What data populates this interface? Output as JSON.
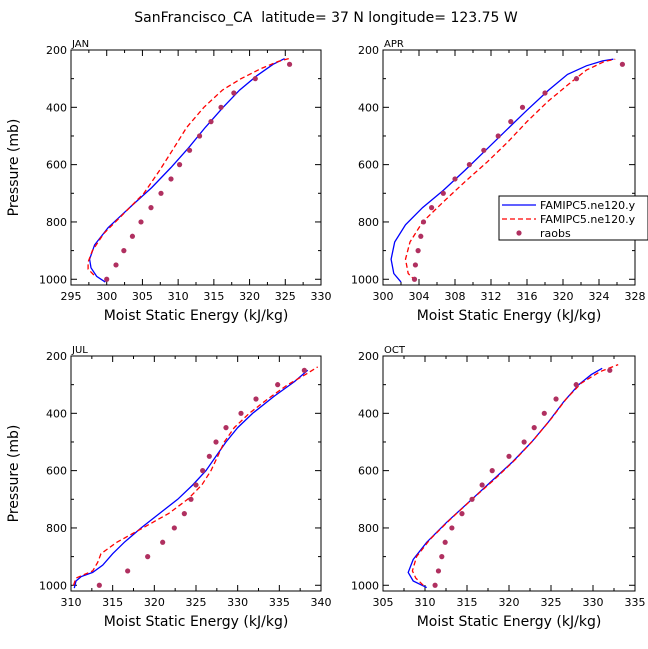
{
  "figure_title": "SanFrancisco_CA  latitude= 37 N longitude= 123.75 W",
  "legend": {
    "entries": [
      {
        "label": "FAMIPC5.ne120.y",
        "color": "#0000ff",
        "style": "solid"
      },
      {
        "label": "FAMIPC5.ne120.y",
        "color": "#ff0000",
        "style": "dashed"
      },
      {
        "label": "raobs",
        "color": "#b03060",
        "style": "dots"
      }
    ]
  },
  "chart_data": [
    {
      "type": "line",
      "title": "JAN",
      "xlabel": "Moist Static Energy (kJ/kg)",
      "ylabel": "Pressure (mb)",
      "xlim": [
        295,
        330
      ],
      "ylim": [
        1020,
        200
      ],
      "xticks": [
        295,
        300,
        305,
        310,
        315,
        320,
        325,
        330
      ],
      "yticks": [
        200,
        400,
        600,
        800,
        1000
      ],
      "series": [
        {
          "name": "FAMIPC5.ne120.y",
          "color": "#0000ff",
          "style": "solid",
          "points": [
            [
              299.8,
              1010
            ],
            [
              298.6,
              990
            ],
            [
              297.8,
              960
            ],
            [
              297.6,
              930
            ],
            [
              298.3,
              880
            ],
            [
              300.2,
              820
            ],
            [
              303.2,
              750
            ],
            [
              306.3,
              680
            ],
            [
              309.0,
              610
            ],
            [
              311.5,
              540
            ],
            [
              313.8,
              470
            ],
            [
              316.3,
              400
            ],
            [
              318.6,
              340
            ],
            [
              321.0,
              290
            ],
            [
              323.3,
              250
            ],
            [
              324.9,
              230
            ]
          ]
        },
        {
          "name": "FAMIPC5.ne120.y",
          "color": "#ff0000",
          "style": "dashed",
          "points": [
            [
              298.2,
              985
            ],
            [
              297.4,
              965
            ],
            [
              297.4,
              940
            ],
            [
              298.0,
              900
            ],
            [
              299.6,
              840
            ],
            [
              302.4,
              770
            ],
            [
              305.2,
              700
            ],
            [
              307.4,
              620
            ],
            [
              309.2,
              550
            ],
            [
              311.2,
              470
            ],
            [
              313.6,
              400
            ],
            [
              316.2,
              340
            ],
            [
              318.8,
              300
            ],
            [
              321.6,
              265
            ],
            [
              324.0,
              240
            ],
            [
              325.8,
              228
            ]
          ]
        },
        {
          "name": "raobs",
          "color": "#b03060",
          "style": "dots",
          "points": [
            [
              300.0,
              1000
            ],
            [
              301.3,
              950
            ],
            [
              302.4,
              900
            ],
            [
              303.6,
              850
            ],
            [
              304.8,
              800
            ],
            [
              306.2,
              750
            ],
            [
              307.6,
              700
            ],
            [
              309.0,
              650
            ],
            [
              310.2,
              600
            ],
            [
              311.6,
              550
            ],
            [
              313.0,
              500
            ],
            [
              314.6,
              450
            ],
            [
              316.0,
              400
            ],
            [
              317.8,
              350
            ],
            [
              320.8,
              300
            ],
            [
              325.6,
              250
            ]
          ]
        }
      ]
    },
    {
      "type": "line",
      "title": "APR",
      "xlabel": "Moist Static Energy (kJ/kg)",
      "ylabel": "",
      "xlim": [
        300,
        328
      ],
      "ylim": [
        1020,
        200
      ],
      "xticks": [
        300,
        304,
        308,
        312,
        316,
        320,
        324,
        328
      ],
      "yticks": [
        200,
        400,
        600,
        800,
        1000
      ],
      "series": [
        {
          "name": "FAMIPC5.ne120.y",
          "color": "#0000ff",
          "style": "solid",
          "points": [
            [
              302.0,
              1010
            ],
            [
              301.2,
              980
            ],
            [
              300.9,
              930
            ],
            [
              301.3,
              870
            ],
            [
              302.5,
              810
            ],
            [
              304.4,
              750
            ],
            [
              306.7,
              690
            ],
            [
              309.1,
              620
            ],
            [
              311.4,
              550
            ],
            [
              313.7,
              480
            ],
            [
              316.0,
              410
            ],
            [
              318.4,
              340
            ],
            [
              320.5,
              285
            ],
            [
              322.6,
              255
            ],
            [
              324.4,
              238
            ],
            [
              325.6,
              232
            ]
          ]
        },
        {
          "name": "FAMIPC5.ne120.y",
          "color": "#ff0000",
          "style": "dashed",
          "points": [
            [
              303.6,
              1005
            ],
            [
              302.8,
              980
            ],
            [
              302.5,
              930
            ],
            [
              303.0,
              870
            ],
            [
              304.4,
              800
            ],
            [
              306.7,
              730
            ],
            [
              309.1,
              660
            ],
            [
              311.6,
              590
            ],
            [
              313.9,
              520
            ],
            [
              316.0,
              450
            ],
            [
              318.3,
              380
            ],
            [
              320.6,
              320
            ],
            [
              322.6,
              270
            ],
            [
              324.6,
              240
            ],
            [
              325.8,
              232
            ]
          ]
        },
        {
          "name": "raobs",
          "color": "#b03060",
          "style": "dots",
          "points": [
            [
              303.5,
              1000
            ],
            [
              303.6,
              950
            ],
            [
              303.9,
              900
            ],
            [
              304.2,
              850
            ],
            [
              304.5,
              800
            ],
            [
              305.4,
              750
            ],
            [
              306.7,
              700
            ],
            [
              308.0,
              650
            ],
            [
              309.6,
              600
            ],
            [
              311.2,
              550
            ],
            [
              312.8,
              500
            ],
            [
              314.2,
              450
            ],
            [
              315.5,
              400
            ],
            [
              318.0,
              350
            ],
            [
              321.5,
              300
            ],
            [
              326.6,
              250
            ]
          ]
        }
      ]
    },
    {
      "type": "line",
      "title": "JUL",
      "xlabel": "Moist Static Energy (kJ/kg)",
      "ylabel": "Pressure (mb)",
      "xlim": [
        310,
        340
      ],
      "ylim": [
        1020,
        200
      ],
      "xticks": [
        310,
        315,
        320,
        325,
        330,
        335,
        340
      ],
      "yticks": [
        200,
        400,
        600,
        800,
        1000
      ],
      "series": [
        {
          "name": "FAMIPC5.ne120.y",
          "color": "#0000ff",
          "style": "solid",
          "points": [
            [
              310.4,
              1010
            ],
            [
              310.6,
              985
            ],
            [
              311.2,
              970
            ],
            [
              312.6,
              955
            ],
            [
              313.8,
              930
            ],
            [
              315.0,
              890
            ],
            [
              316.4,
              850
            ],
            [
              318.4,
              800
            ],
            [
              320.6,
              750
            ],
            [
              322.8,
              700
            ],
            [
              324.6,
              650
            ],
            [
              326.2,
              600
            ],
            [
              327.4,
              550
            ],
            [
              328.6,
              500
            ],
            [
              330.0,
              450
            ],
            [
              331.8,
              400
            ],
            [
              334.4,
              340
            ],
            [
              336.8,
              290
            ],
            [
              338.4,
              250
            ]
          ]
        },
        {
          "name": "FAMIPC5.ne120.y",
          "color": "#ff0000",
          "style": "dashed",
          "points": [
            [
              310.3,
              1000
            ],
            [
              310.6,
              975
            ],
            [
              311.4,
              965
            ],
            [
              312.6,
              950
            ],
            [
              313.2,
              920
            ],
            [
              313.6,
              890
            ],
            [
              315.5,
              850
            ],
            [
              318.6,
              800
            ],
            [
              321.7,
              750
            ],
            [
              324.0,
              700
            ],
            [
              325.7,
              650
            ],
            [
              326.8,
              600
            ],
            [
              327.6,
              550
            ],
            [
              328.4,
              500
            ],
            [
              329.6,
              450
            ],
            [
              331.4,
              400
            ],
            [
              333.6,
              350
            ],
            [
              336.0,
              300
            ],
            [
              338.4,
              260
            ],
            [
              339.6,
              238
            ]
          ]
        },
        {
          "name": "raobs",
          "color": "#b03060",
          "style": "dots",
          "points": [
            [
              313.4,
              1000
            ],
            [
              316.8,
              950
            ],
            [
              319.2,
              900
            ],
            [
              321.0,
              850
            ],
            [
              322.4,
              800
            ],
            [
              323.6,
              750
            ],
            [
              324.4,
              700
            ],
            [
              325.0,
              650
            ],
            [
              325.8,
              600
            ],
            [
              326.6,
              550
            ],
            [
              327.4,
              500
            ],
            [
              328.6,
              450
            ],
            [
              330.4,
              400
            ],
            [
              332.2,
              350
            ],
            [
              334.8,
              300
            ],
            [
              338.0,
              250
            ]
          ]
        }
      ]
    },
    {
      "type": "line",
      "title": "OCT",
      "xlabel": "Moist Static Energy (kJ/kg)",
      "ylabel": "",
      "xlim": [
        305,
        335
      ],
      "ylim": [
        1020,
        200
      ],
      "xticks": [
        305,
        310,
        315,
        320,
        325,
        330,
        335
      ],
      "yticks": [
        200,
        400,
        600,
        800,
        1000
      ],
      "series": [
        {
          "name": "FAMIPC5.ne120.y",
          "color": "#0000ff",
          "style": "solid",
          "points": [
            [
              310.2,
              1008
            ],
            [
              308.6,
              985
            ],
            [
              308.0,
              955
            ],
            [
              308.6,
              910
            ],
            [
              310.2,
              850
            ],
            [
              312.6,
              780
            ],
            [
              315.2,
              710
            ],
            [
              317.8,
              640
            ],
            [
              320.4,
              570
            ],
            [
              322.7,
              500
            ],
            [
              324.7,
              430
            ],
            [
              326.5,
              360
            ],
            [
              328.3,
              300
            ],
            [
              329.8,
              265
            ],
            [
              331.1,
              243
            ]
          ]
        },
        {
          "name": "FAMIPC5.ne120.y",
          "color": "#ff0000",
          "style": "dashed",
          "points": [
            [
              309.8,
              1000
            ],
            [
              308.9,
              975
            ],
            [
              308.5,
              950
            ],
            [
              309.0,
              900
            ],
            [
              310.6,
              840
            ],
            [
              313.0,
              770
            ],
            [
              315.6,
              700
            ],
            [
              318.3,
              630
            ],
            [
              320.8,
              560
            ],
            [
              323.0,
              490
            ],
            [
              325.0,
              420
            ],
            [
              326.8,
              350
            ],
            [
              328.6,
              295
            ],
            [
              330.8,
              255
            ],
            [
              333.0,
              230
            ]
          ]
        },
        {
          "name": "raobs",
          "color": "#b03060",
          "style": "dots",
          "points": [
            [
              311.2,
              1000
            ],
            [
              311.6,
              950
            ],
            [
              312.0,
              900
            ],
            [
              312.4,
              850
            ],
            [
              313.2,
              800
            ],
            [
              314.4,
              750
            ],
            [
              315.6,
              700
            ],
            [
              316.8,
              650
            ],
            [
              318.0,
              600
            ],
            [
              320.0,
              550
            ],
            [
              321.8,
              500
            ],
            [
              323.0,
              450
            ],
            [
              324.2,
              400
            ],
            [
              325.6,
              350
            ],
            [
              328.0,
              300
            ],
            [
              332.0,
              250
            ]
          ]
        }
      ]
    }
  ]
}
